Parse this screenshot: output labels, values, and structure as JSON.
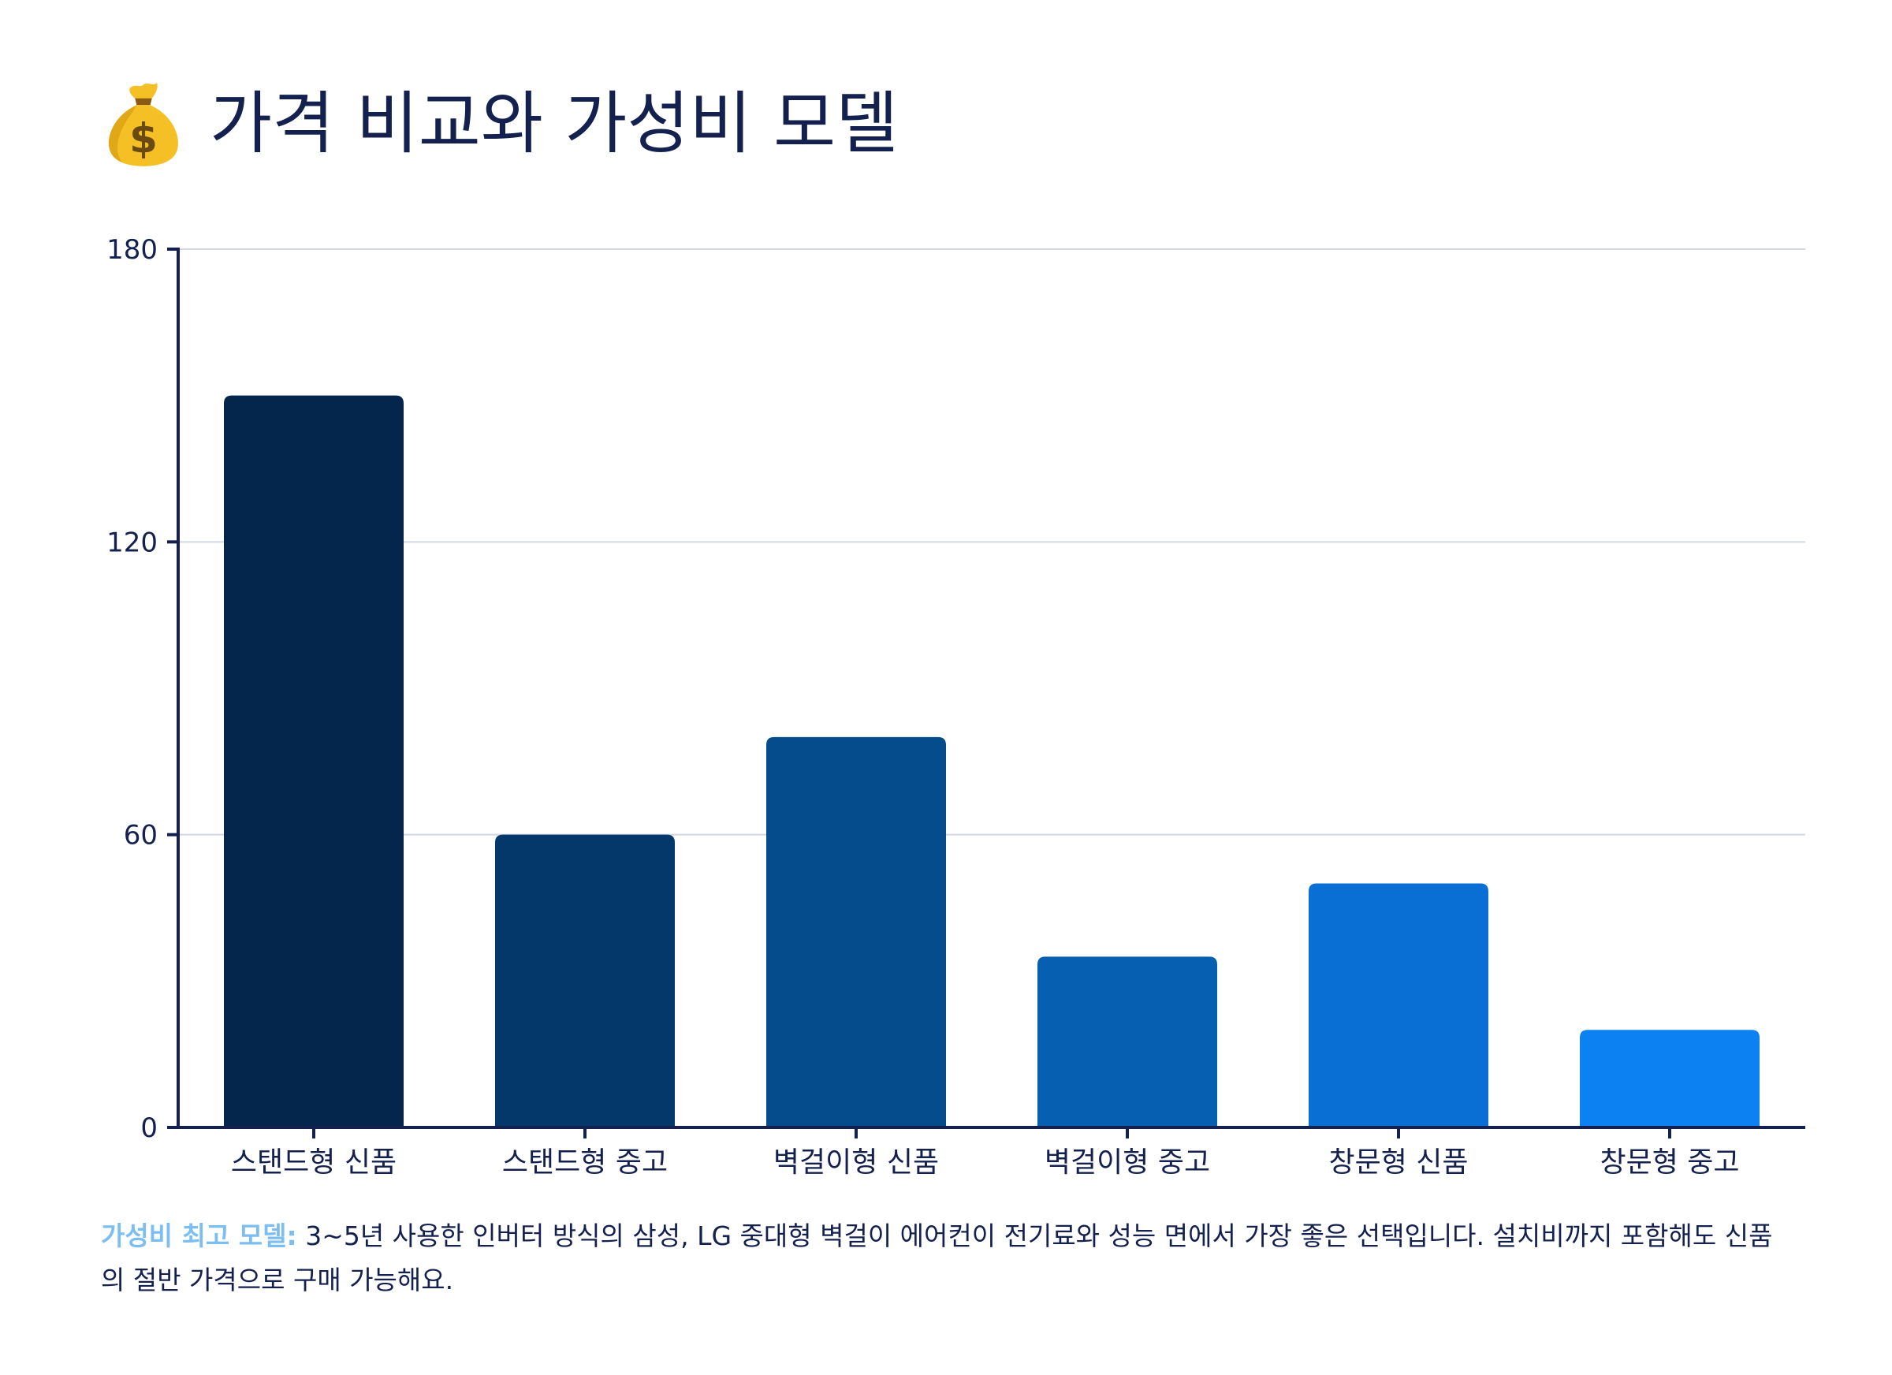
{
  "page": {
    "title": "가격 비교와 가성비 모델",
    "title_icon": "money-bag-icon"
  },
  "note": {
    "label": "가성비 최고 모델:",
    "text": " 3~5년 사용한 인버터 방식의 삼성, LG 중대형 벽걸이 에어컨이 전기료와 성능 면에서 가장 좋은 선택입니다. 설치비까지 포함해도 신품의 절반 가격으로 구매 가능해요."
  },
  "chart_data": {
    "type": "bar",
    "title": "",
    "xlabel": "",
    "ylabel": "",
    "categories": [
      "스탠드형 신품",
      "스탠드형 중고",
      "벽걸이형 신품",
      "벽걸이형 중고",
      "창문형 신품",
      "창문형 중고"
    ],
    "values": [
      150,
      60,
      80,
      35,
      50,
      20
    ],
    "colors": [
      "#04264c",
      "#04386a",
      "#054c8c",
      "#065fb0",
      "#0a6fd4",
      "#0c82f2"
    ],
    "ylim": [
      0,
      180
    ],
    "yticks": [
      0,
      60,
      120,
      180
    ],
    "grid": true,
    "legend": "none"
  }
}
